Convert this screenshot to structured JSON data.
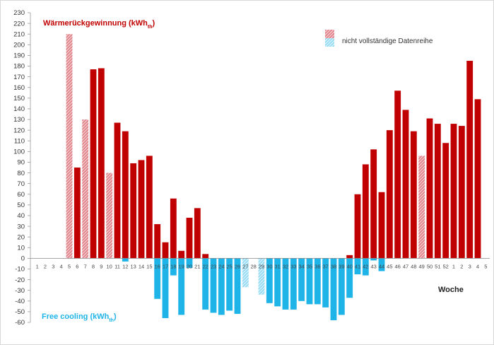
{
  "chart_data": {
    "type": "bar",
    "title_positive": "Wärmerückgewinnung (kWhth)",
    "title_negative": "Free cooling (kWhth)",
    "xlabel": "Woche",
    "legend": {
      "label": "nicht vollständige Datenreihe",
      "position": "top-right"
    },
    "ylim": [
      -60,
      230
    ],
    "y_ticks": [
      230,
      220,
      210,
      200,
      190,
      180,
      170,
      160,
      150,
      140,
      130,
      120,
      110,
      100,
      90,
      80,
      70,
      60,
      50,
      40,
      30,
      20,
      10,
      0,
      -10,
      -20,
      -30,
      -40,
      -50,
      -60
    ],
    "categories": [
      "1",
      "2",
      "3",
      "4",
      "5",
      "6",
      "7",
      "8",
      "9",
      "10",
      "11",
      "12",
      "13",
      "14",
      "15",
      "16",
      "17",
      "18",
      "19",
      "20",
      "21",
      "22",
      "23",
      "24",
      "25",
      "26",
      "27",
      "28",
      "29",
      "30",
      "31",
      "32",
      "33",
      "34",
      "35",
      "36",
      "37",
      "38",
      "39",
      "40",
      "41",
      "42",
      "43",
      "44",
      "45",
      "46",
      "47",
      "48",
      "49",
      "50",
      "51",
      "52",
      "1",
      "2",
      "3",
      "4",
      "5"
    ],
    "series": [
      {
        "key": "heat_recovery",
        "values": [
          0,
          0,
          0,
          0,
          210,
          85,
          130,
          177,
          178,
          80,
          127,
          119,
          89,
          92,
          96,
          32,
          15,
          56,
          7,
          38,
          47,
          4,
          0,
          0,
          0,
          0,
          0,
          0,
          0,
          0,
          0,
          0,
          0,
          0,
          0,
          0,
          0,
          0,
          0,
          3,
          60,
          88,
          102,
          62,
          120,
          157,
          139,
          119,
          96,
          131,
          126,
          108,
          126,
          124,
          185,
          149,
          0
        ],
        "color": "#c00000"
      },
      {
        "key": "free_cooling",
        "values": [
          0,
          0,
          0,
          0,
          0,
          0,
          0,
          0,
          0,
          0,
          0,
          -3,
          0,
          0,
          0,
          -38,
          -56,
          -16,
          -53,
          -9,
          0,
          -48,
          -51,
          -53,
          -49,
          -52,
          -27,
          0,
          -34,
          -42,
          -45,
          -48,
          -48,
          -40,
          -43,
          -43,
          -46,
          -58,
          -53,
          -37,
          -15,
          -16,
          -2,
          -12,
          0,
          0,
          0,
          0,
          0,
          0,
          0,
          0,
          0,
          0,
          0,
          0,
          0
        ],
        "color": "#1fb4e8"
      }
    ],
    "incomplete_weeks_heat": [
      5,
      7,
      10,
      49
    ],
    "incomplete_weeks_cool": [
      27,
      29
    ],
    "grid": false,
    "colors": {
      "heat": "#c00000",
      "heat_incomplete": "#e8828a",
      "cool": "#1fb4e8",
      "cool_incomplete": "#9cdcf2"
    }
  }
}
